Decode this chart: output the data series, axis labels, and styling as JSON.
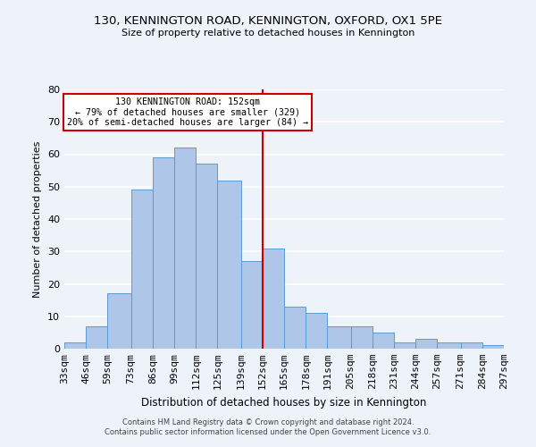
{
  "title": "130, KENNINGTON ROAD, KENNINGTON, OXFORD, OX1 5PE",
  "subtitle": "Size of property relative to detached houses in Kennington",
  "xlabel": "Distribution of detached houses by size in Kennington",
  "ylabel": "Number of detached properties",
  "footer_line1": "Contains HM Land Registry data © Crown copyright and database right 2024.",
  "footer_line2": "Contains public sector information licensed under the Open Government Licence v3.0.",
  "bar_edges": [
    33,
    46,
    59,
    73,
    86,
    99,
    112,
    125,
    139,
    152,
    165,
    178,
    191,
    205,
    218,
    231,
    244,
    257,
    271,
    284,
    297
  ],
  "bar_heights": [
    2,
    7,
    17,
    49,
    59,
    62,
    57,
    52,
    27,
    31,
    13,
    11,
    7,
    7,
    5,
    2,
    3,
    2,
    2,
    1
  ],
  "bar_color": "#aec6e8",
  "bar_edgecolor": "#5b9bd5",
  "vline_x": 152,
  "vline_color": "#cc0000",
  "annotation_title": "130 KENNINGTON ROAD: 152sqm",
  "annotation_line2": "← 79% of detached houses are smaller (329)",
  "annotation_line3": "20% of semi-detached houses are larger (84) →",
  "annotation_box_edgecolor": "#cc0000",
  "annotation_box_facecolor": "#ffffff",
  "ylim": [
    0,
    80
  ],
  "background_color": "#eef2f9",
  "grid_color": "#ffffff",
  "tick_labels": [
    "33sqm",
    "46sqm",
    "59sqm",
    "73sqm",
    "86sqm",
    "99sqm",
    "112sqm",
    "125sqm",
    "139sqm",
    "152sqm",
    "165sqm",
    "178sqm",
    "191sqm",
    "205sqm",
    "218sqm",
    "231sqm",
    "244sqm",
    "257sqm",
    "271sqm",
    "284sqm",
    "297sqm"
  ]
}
